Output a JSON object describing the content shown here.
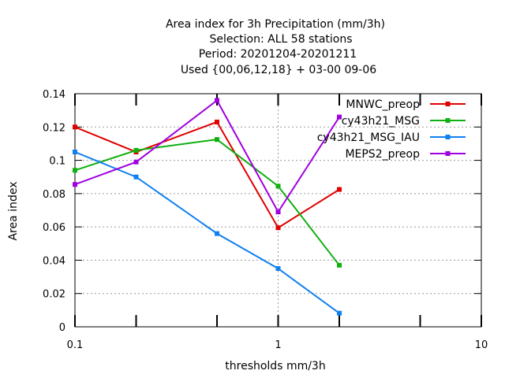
{
  "chart_data": {
    "type": "line",
    "title_lines": [
      "Area index  for 3h Precipitation (mm/3h)",
      "Selection: ALL     58 stations",
      "Period: 20201204-20201211",
      "Used {00,06,12,18} + 03-00 09-06"
    ],
    "xlabel": "thresholds mm/3h",
    "ylabel": "Area index",
    "x_scale": "log",
    "xlim": [
      0.1,
      10
    ],
    "ylim": [
      0,
      0.14
    ],
    "x_ticks": [
      0.1,
      1,
      10
    ],
    "x_tick_labels": [
      "0.1",
      "1",
      "10"
    ],
    "x_minor_ticks": [
      0.2,
      0.5,
      2,
      5
    ],
    "y_ticks": [
      0,
      0.02,
      0.04,
      0.06,
      0.08,
      0.1,
      0.12,
      0.14
    ],
    "y_tick_labels": [
      "0",
      "0.02",
      "0.04",
      "0.06",
      "0.08",
      "0.1",
      "0.12",
      "0.14"
    ],
    "grid": true,
    "legend_position": "top-right",
    "x": [
      0.1,
      0.2,
      0.5,
      1,
      2
    ],
    "series": [
      {
        "name": "MNWC_preop",
        "color": "#e00000",
        "values": [
          0.12,
          0.105,
          0.123,
          0.0595,
          0.0825
        ]
      },
      {
        "name": "cy43h21_MSG",
        "color": "#10b010",
        "values": [
          0.094,
          0.106,
          0.1125,
          0.0845,
          0.037
        ]
      },
      {
        "name": "cy43h21_MSG_IAU",
        "color": "#1080f0",
        "values": [
          0.105,
          0.09,
          0.056,
          0.035,
          0.0082
        ]
      },
      {
        "name": "MEPS2_preop",
        "color": "#a000e0",
        "values": [
          0.0855,
          0.099,
          0.136,
          0.069,
          0.126
        ]
      }
    ]
  }
}
